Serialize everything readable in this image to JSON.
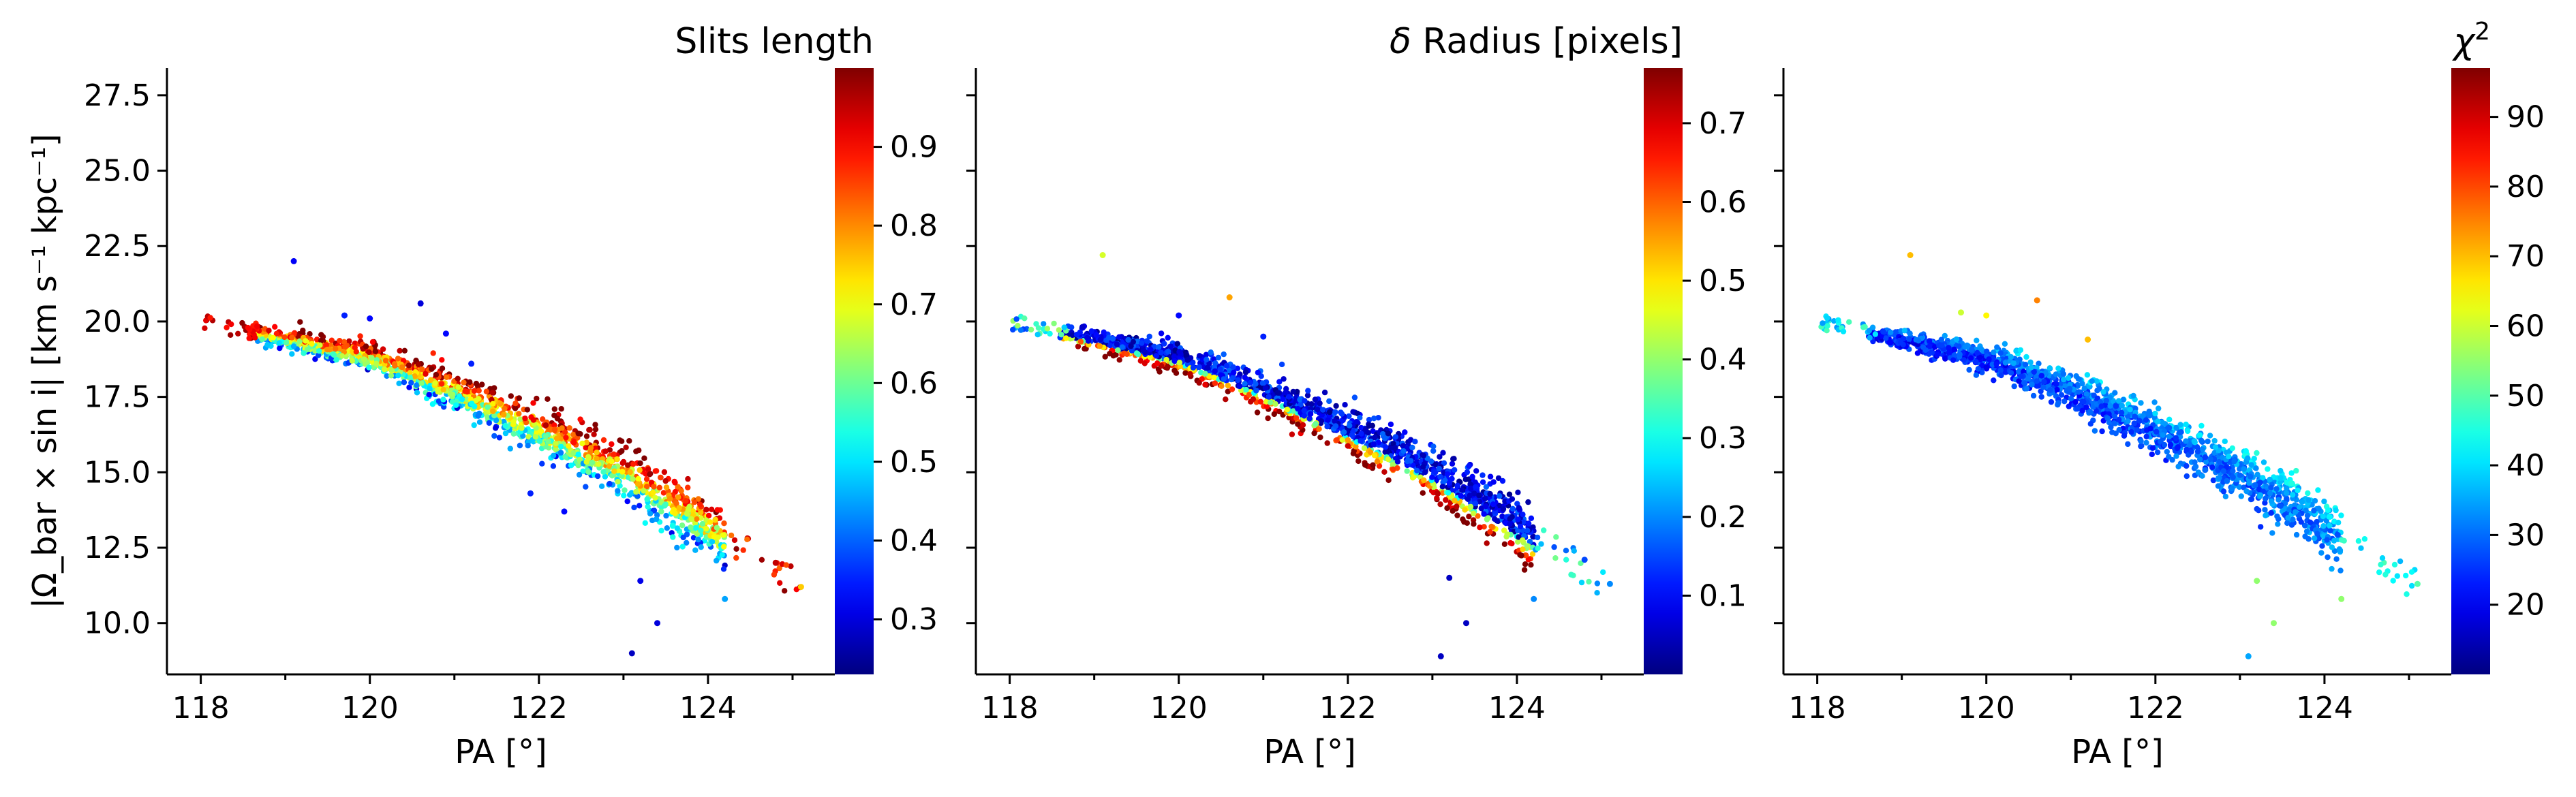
{
  "figure": {
    "ylabel_plain": "|Ω_bar × sin i|  [km s⁻¹ kpc⁻¹]"
  },
  "chart_data": [
    {
      "type": "scatter",
      "xlabel": "PA [°]",
      "ylabel": "|Ω_bar × sin i|  [km s⁻¹ kpc⁻¹]",
      "xlim": [
        117.6,
        125.5
      ],
      "ylim": [
        8.3,
        28.4
      ],
      "xticks": [
        118,
        120,
        122,
        124
      ],
      "yticks": [
        10.0,
        12.5,
        15.0,
        17.5,
        20.0,
        22.5,
        25.0,
        27.5
      ],
      "grid": false,
      "colorbar": {
        "label": "Slits length",
        "cmap": "jet",
        "range": [
          0.23,
          1.0
        ],
        "ticks": [
          0.3,
          0.4,
          0.5,
          0.6,
          0.7,
          0.8,
          0.9
        ]
      },
      "color_trend": "high values (red) along upper edge of the band, lower values (yellow-green-cyan) along lower edge",
      "band": {
        "pa_range": [
          118.0,
          125.1
        ],
        "centerline": [
          [
            118.5,
            19.7
          ],
          [
            120.0,
            18.8
          ],
          [
            121.0,
            17.7
          ],
          [
            122.0,
            16.4
          ],
          [
            123.0,
            15.0
          ],
          [
            124.0,
            13.2
          ]
        ]
      },
      "outliers": [
        {
          "x": 119.1,
          "y": 22.0,
          "c": 0.32
        },
        {
          "x": 119.7,
          "y": 20.2,
          "c": 0.35
        },
        {
          "x": 120.0,
          "y": 20.1,
          "c": 0.33
        },
        {
          "x": 120.6,
          "y": 20.6,
          "c": 0.3
        },
        {
          "x": 120.9,
          "y": 19.6,
          "c": 0.33
        },
        {
          "x": 121.2,
          "y": 18.6,
          "c": 0.35
        },
        {
          "x": 121.9,
          "y": 14.3,
          "c": 0.35
        },
        {
          "x": 122.3,
          "y": 13.7,
          "c": 0.33
        },
        {
          "x": 123.2,
          "y": 11.4,
          "c": 0.31
        },
        {
          "x": 123.4,
          "y": 10.0,
          "c": 0.3
        },
        {
          "x": 123.1,
          "y": 9.0,
          "c": 0.28
        },
        {
          "x": 124.2,
          "y": 10.8,
          "c": 0.45
        },
        {
          "x": 125.1,
          "y": 11.2,
          "c": 0.75
        },
        {
          "x": 124.8,
          "y": 12.0,
          "c": 0.95
        }
      ]
    },
    {
      "type": "scatter",
      "xlabel": "PA [°]",
      "ylabel": "",
      "xlim": [
        117.6,
        125.5
      ],
      "ylim": [
        8.3,
        28.4
      ],
      "xticks": [
        118,
        120,
        122,
        124
      ],
      "yticks": [],
      "grid": false,
      "colorbar": {
        "label": "δ Radius [pixels]",
        "cmap": "jet",
        "range": [
          0.0,
          0.77
        ],
        "ticks": [
          0.1,
          0.2,
          0.3,
          0.4,
          0.5,
          0.6,
          0.7
        ]
      },
      "color_trend": "mostly low values (blue) in the band, higher values (yellow-orange-red) along lower edge of the band",
      "band": {
        "pa_range": [
          118.2,
          125.1
        ],
        "centerline": [
          [
            118.5,
            19.7
          ],
          [
            120.0,
            18.8
          ],
          [
            121.0,
            17.7
          ],
          [
            122.0,
            16.4
          ],
          [
            123.0,
            15.0
          ],
          [
            124.0,
            13.2
          ]
        ]
      },
      "outliers": [
        {
          "x": 119.1,
          "y": 22.2,
          "c": 0.45
        },
        {
          "x": 120.6,
          "y": 20.8,
          "c": 0.55
        },
        {
          "x": 120.0,
          "y": 20.2,
          "c": 0.1
        },
        {
          "x": 121.0,
          "y": 19.5,
          "c": 0.12
        },
        {
          "x": 123.2,
          "y": 11.5,
          "c": 0.05
        },
        {
          "x": 123.4,
          "y": 10.0,
          "c": 0.05
        },
        {
          "x": 123.1,
          "y": 8.9,
          "c": 0.05
        },
        {
          "x": 124.2,
          "y": 10.8,
          "c": 0.2
        },
        {
          "x": 125.1,
          "y": 11.3,
          "c": 0.2
        },
        {
          "x": 124.8,
          "y": 12.1,
          "c": 0.15
        }
      ]
    },
    {
      "type": "scatter",
      "xlabel": "PA [°]",
      "ylabel": "",
      "xlim": [
        117.6,
        125.5
      ],
      "ylim": [
        8.3,
        28.4
      ],
      "xticks": [
        118,
        120,
        122,
        124
      ],
      "yticks": [],
      "grid": false,
      "colorbar": {
        "label": "χ²",
        "cmap": "jet",
        "range": [
          10,
          97
        ],
        "ticks": [
          20,
          30,
          40,
          50,
          60,
          70,
          80,
          90
        ]
      },
      "color_trend": "mostly low values (blue) in the band, slightly higher (cyan) along the upper edge and the right end",
      "band": {
        "pa_range": [
          118.0,
          125.1
        ],
        "centerline": [
          [
            118.5,
            19.7
          ],
          [
            120.0,
            18.8
          ],
          [
            121.0,
            17.7
          ],
          [
            122.0,
            16.4
          ],
          [
            123.0,
            15.0
          ],
          [
            124.0,
            13.2
          ]
        ]
      },
      "outliers": [
        {
          "x": 119.1,
          "y": 22.2,
          "c": 70
        },
        {
          "x": 120.6,
          "y": 20.7,
          "c": 75
        },
        {
          "x": 119.7,
          "y": 20.3,
          "c": 60
        },
        {
          "x": 120.0,
          "y": 20.2,
          "c": 65
        },
        {
          "x": 121.2,
          "y": 19.4,
          "c": 70
        },
        {
          "x": 123.2,
          "y": 11.4,
          "c": 55
        },
        {
          "x": 123.4,
          "y": 10.0,
          "c": 55
        },
        {
          "x": 123.1,
          "y": 8.9,
          "c": 35
        },
        {
          "x": 124.2,
          "y": 10.8,
          "c": 55
        },
        {
          "x": 125.1,
          "y": 11.3,
          "c": 50
        }
      ]
    }
  ]
}
